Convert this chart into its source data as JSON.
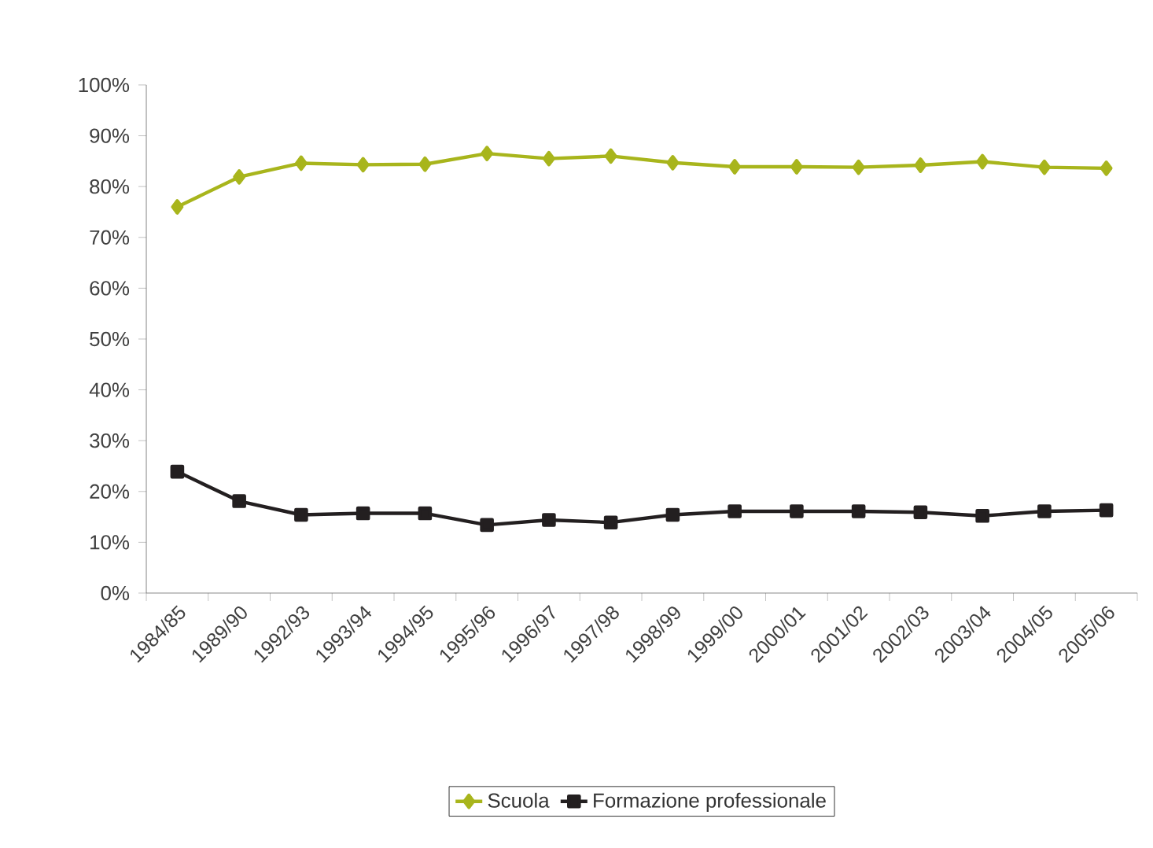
{
  "chart_data": {
    "type": "line",
    "categories": [
      "1984/85",
      "1989/90",
      "1992/93",
      "1993/94",
      "1994/95",
      "1995/96",
      "1996/97",
      "1997/98",
      "1998/99",
      "1999/00",
      "2000/01",
      "2001/02",
      "2002/03",
      "2003/04",
      "2004/05",
      "2005/06"
    ],
    "series": [
      {
        "name": "Scuola",
        "color": "#a8b51c",
        "marker": "diamond",
        "values": [
          76.0,
          81.9,
          84.6,
          84.3,
          84.4,
          86.5,
          85.5,
          86.0,
          84.7,
          83.9,
          83.9,
          83.8,
          84.2,
          84.9,
          83.8,
          83.6
        ]
      },
      {
        "name": "Formazione professionale",
        "color": "#231f20",
        "marker": "square",
        "values": [
          23.9,
          18.1,
          15.4,
          15.7,
          15.7,
          13.4,
          14.4,
          13.9,
          15.4,
          16.1,
          16.1,
          16.1,
          15.9,
          15.2,
          16.1,
          16.3
        ]
      }
    ],
    "ylim": [
      0,
      100
    ],
    "yticks": [
      {
        "value": 0,
        "label": "0%"
      },
      {
        "value": 10,
        "label": "10%"
      },
      {
        "value": 20,
        "label": "20%"
      },
      {
        "value": 30,
        "label": "30%"
      },
      {
        "value": 40,
        "label": "40%"
      },
      {
        "value": 50,
        "label": "50%"
      },
      {
        "value": 60,
        "label": "60%"
      },
      {
        "value": 70,
        "label": "70%"
      },
      {
        "value": 80,
        "label": "80%"
      },
      {
        "value": 90,
        "label": "90%"
      },
      {
        "value": 100,
        "label": "100%"
      }
    ],
    "grid": false,
    "legend": "bottom",
    "line_style": "solid"
  }
}
